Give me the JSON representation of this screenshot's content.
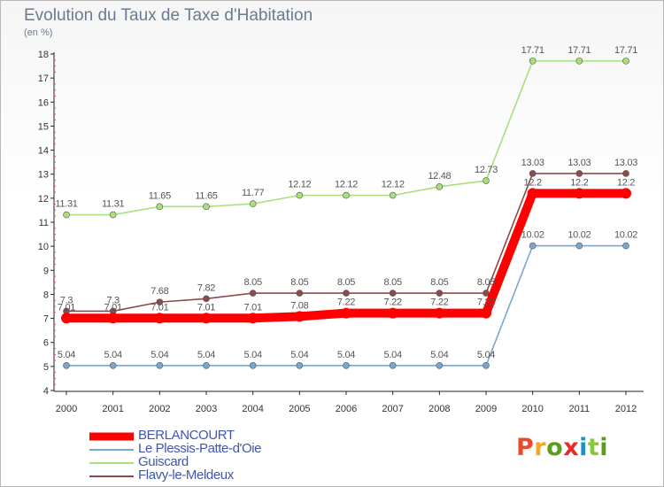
{
  "header": {
    "title": "Evolution du Taux de Taxe d'Habitation",
    "unit": "(en %)"
  },
  "logo": {
    "text": "Proxiti",
    "letter_colors": [
      "#e94a2a",
      "#f5a623",
      "#5a9e1e",
      "#e92a2a",
      "#1e90c8",
      "#8cc63f",
      "#5a9e1e"
    ]
  },
  "chart_data": {
    "type": "line",
    "title": "Evolution du Taux de Taxe d'Habitation",
    "subtitle": "(en %)",
    "xlabel": "",
    "ylabel": "",
    "x": [
      "2000",
      "2001",
      "2002",
      "2003",
      "2004",
      "2005",
      "2006",
      "2007",
      "2008",
      "2009",
      "2010",
      "2011",
      "2012"
    ],
    "ylim": [
      4,
      18
    ],
    "yticks": [
      4,
      5,
      6,
      7,
      8,
      9,
      10,
      11,
      12,
      13,
      14,
      15,
      16,
      17,
      18
    ],
    "grid": false,
    "legend_position": "bottom-left",
    "series": [
      {
        "name": "BERLANCOURT",
        "color": "#ff0000",
        "emphasis": true,
        "values": [
          7.01,
          7.01,
          7.01,
          7.01,
          7.01,
          7.08,
          7.22,
          7.22,
          7.22,
          7.22,
          12.2,
          12.2,
          12.2
        ],
        "labels": [
          "7.01",
          "7.01",
          "7.01",
          "7.01",
          "7.01",
          "7.08",
          "7.22",
          "7.22",
          "7.22",
          "7.22",
          "12.2",
          "12.2",
          "12.2"
        ]
      },
      {
        "name": "Le Plessis-Patte-d'Oie",
        "color": "#7aa7cf",
        "emphasis": false,
        "values": [
          5.04,
          5.04,
          5.04,
          5.04,
          5.04,
          5.04,
          5.04,
          5.04,
          5.04,
          5.04,
          10.02,
          10.02,
          10.02
        ],
        "labels": [
          "5.04",
          "5.04",
          "5.04",
          "5.04",
          "5.04",
          "5.04",
          "5.04",
          "5.04",
          "5.04",
          "5.04",
          "10.02",
          "10.02",
          "10.02"
        ]
      },
      {
        "name": "Guiscard",
        "color": "#a8e07a",
        "emphasis": false,
        "values": [
          11.31,
          11.31,
          11.65,
          11.65,
          11.77,
          12.12,
          12.12,
          12.12,
          12.48,
          12.73,
          17.71,
          17.71,
          17.71
        ],
        "labels": [
          "11.31",
          "11.31",
          "11.65",
          "11.65",
          "11.77",
          "12.12",
          "12.12",
          "12.12",
          "12.48",
          "12.73",
          "17.71",
          "17.71",
          "17.71"
        ]
      },
      {
        "name": "Flavy-le-Meldeux",
        "color": "#8c4a4a",
        "emphasis": false,
        "values": [
          7.3,
          7.3,
          7.68,
          7.82,
          8.05,
          8.05,
          8.05,
          8.05,
          8.05,
          8.05,
          13.03,
          13.03,
          13.03
        ],
        "labels": [
          "7.3",
          "7.3",
          "7.68",
          "7.82",
          "8.05",
          "8.05",
          "8.05",
          "8.05",
          "8.05",
          "8.05",
          "13.03",
          "13.03",
          "13.03"
        ]
      }
    ]
  }
}
